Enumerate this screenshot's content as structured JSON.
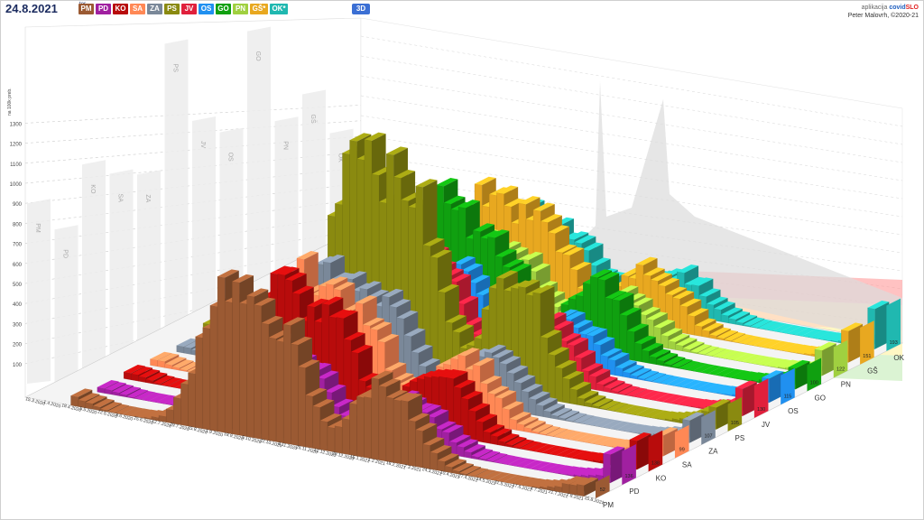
{
  "header": {
    "date": "24.8.2021",
    "date_sup": "tor",
    "mode_button": "3D",
    "brand_prefix": "aplikacija",
    "brand_name_a": "covid",
    "brand_name_b": "SLO",
    "author": "Peter Malovrh, ©2020-21"
  },
  "legend": [
    {
      "code": "PM",
      "color": "#9b5a33"
    },
    {
      "code": "PD",
      "color": "#a020a0"
    },
    {
      "code": "KO",
      "color": "#b80c0c"
    },
    {
      "code": "SA",
      "color": "#ff8855"
    },
    {
      "code": "ZA",
      "color": "#7a8899"
    },
    {
      "code": "PS",
      "color": "#8a8a10"
    },
    {
      "code": "JV",
      "color": "#e0203c"
    },
    {
      "code": "OS",
      "color": "#2090f0"
    },
    {
      "code": "GO",
      "color": "#10a010"
    },
    {
      "code": "PN",
      "color": "#a0d040"
    },
    {
      "code": "GŠ*",
      "color": "#e8a820"
    },
    {
      "code": "OK*",
      "color": "#20b8b0"
    }
  ],
  "colors": {
    "PM": "#9b5a33",
    "PD": "#a020a0",
    "KO": "#b80c0c",
    "SA": "#ff8855",
    "ZA": "#7a8899",
    "PS": "#8a8a10",
    "JV": "#e0203c",
    "OS": "#2090f0",
    "GO": "#10a010",
    "PN": "#a0d040",
    "GŠ": "#e8a820",
    "OK": "#20b8b0"
  },
  "chart_data": {
    "type": "bar",
    "unit": "na 100k preb.",
    "yticks": [
      100,
      200,
      300,
      400,
      500,
      600,
      700,
      800,
      900,
      1000,
      1100,
      1200,
      1300
    ],
    "dates": [
      "15.3.2020",
      "1.4.2020",
      "18.4.2020",
      "5.5.2020",
      "22.5.2020",
      "8.6.2020",
      "25.6.2020",
      "12.7.2020",
      "29.7.2020",
      "15.8.2020",
      "1.9.2020",
      "18.9.2020",
      "5.10.2020",
      "22.10.2020",
      "8.11.2020",
      "25.11.2020",
      "12.12.2020",
      "29.12.2020",
      "15.1.2021",
      "1.2.2021",
      "18.2.2021",
      "7.3.2021",
      "24.3.2021",
      "10.4.2021",
      "27.4.2021",
      "14.5.2021",
      "31.5.2021",
      "17.6.2021",
      "4.7.2021",
      "21.7.2021",
      "7.8.2021",
      "15.8.2021"
    ],
    "series": [
      {
        "name": "PM",
        "current": 52,
        "back_max": 850,
        "peak": 680
      },
      {
        "name": "PD",
        "current": 136,
        "back_max": 720,
        "peak": 380
      },
      {
        "name": "KO",
        "current": 138,
        "back_max": 1020,
        "peak": 560
      },
      {
        "name": "SA",
        "current": 99,
        "back_max": 970,
        "peak": 540
      },
      {
        "name": "ZA",
        "current": 107,
        "back_max": 960,
        "peak": 500
      },
      {
        "name": "PS",
        "current": 105,
        "back_max": 1570,
        "peak": 1080
      },
      {
        "name": "JV",
        "current": 130,
        "back_max": 1200,
        "peak": 560
      },
      {
        "name": "OS",
        "current": 115,
        "back_max": 1140,
        "peak": 420
      },
      {
        "name": "GO",
        "current": 100,
        "back_max": 1610,
        "peak": 600
      },
      {
        "name": "PN",
        "current": 122,
        "back_max": 1180,
        "peak": 360
      },
      {
        "name": "GŠ",
        "current": 151,
        "back_max": 1300,
        "peak": 500
      },
      {
        "name": "OK",
        "current": 193,
        "back_max": 1110,
        "peak": 340
      }
    ]
  }
}
